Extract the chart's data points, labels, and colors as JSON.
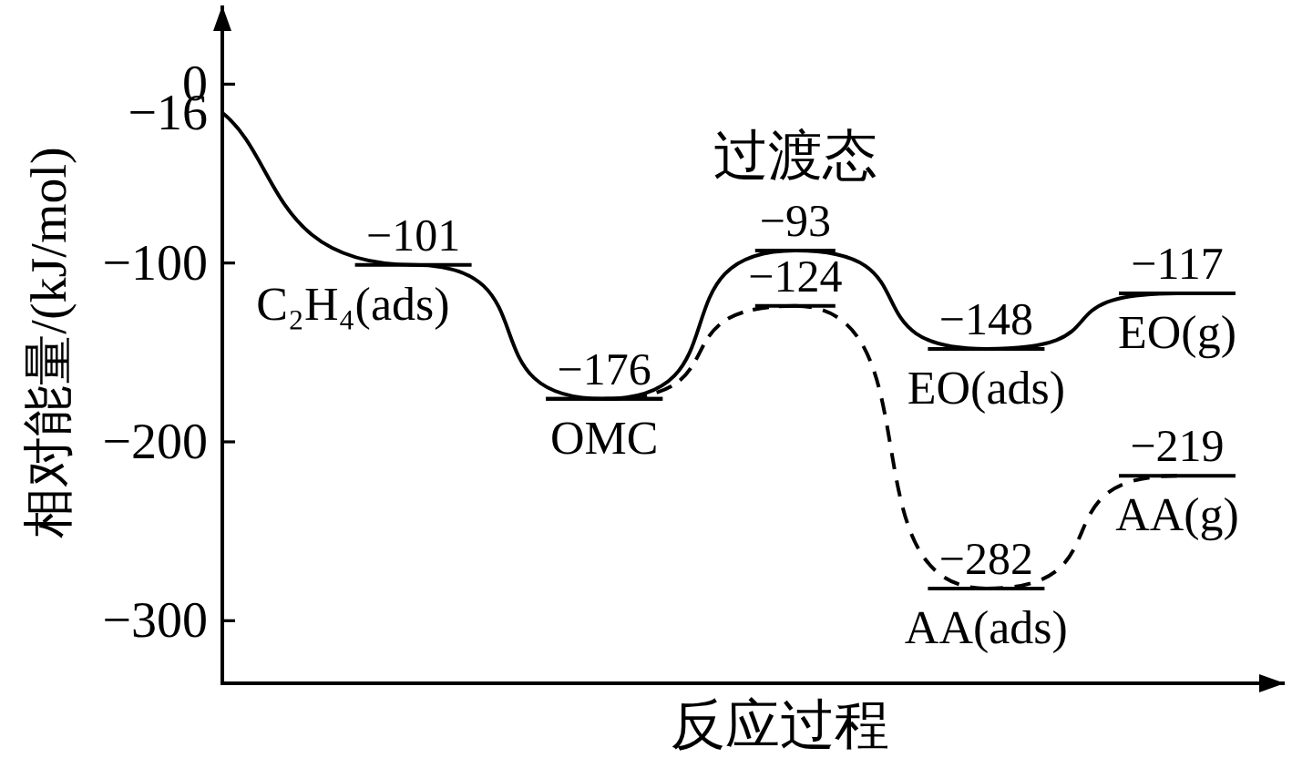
{
  "chart_data": {
    "type": "line",
    "xlabel": "反应过程",
    "ylabel": "相对能量/(kJ/mol)",
    "categories": [
      null,
      null,
      null,
      null,
      null,
      null
    ],
    "series": [
      {
        "color": "#000000",
        "line_style": "solid",
        "values": [
          -16,
          -101,
          -176,
          -93,
          -148,
          -117
        ],
        "value_labels": [
          "−16",
          "−101",
          "−176",
          "−93",
          "−148",
          "−117"
        ]
      },
      {
        "color": "#000000",
        "line_style": "dashed",
        "values": [
          null,
          null,
          -176,
          -124,
          -282,
          -219
        ],
        "value_labels": [
          null,
          null,
          null,
          "−124",
          "−282",
          "−219"
        ]
      }
    ],
    "ylim": [
      -335,
      44
    ],
    "yticks": [
      {
        "value": -300,
        "label": "−300"
      },
      {
        "value": -200,
        "label": "−200"
      },
      {
        "value": -100,
        "label": "−100"
      },
      {
        "value": 0,
        "label": "0"
      }
    ],
    "annotations": [
      {
        "text": "C₂H₄(ads)",
        "y": -101
      },
      {
        "text": "OMC",
        "y": -176
      },
      {
        "text": "过渡态",
        "y": -93
      },
      {
        "text": "EO(ads)",
        "y": -148
      },
      {
        "text": "EO(g)",
        "y": -117
      },
      {
        "text": "AA(ads)",
        "y": -282
      },
      {
        "text": "AA(g)",
        "y": -219
      }
    ]
  }
}
